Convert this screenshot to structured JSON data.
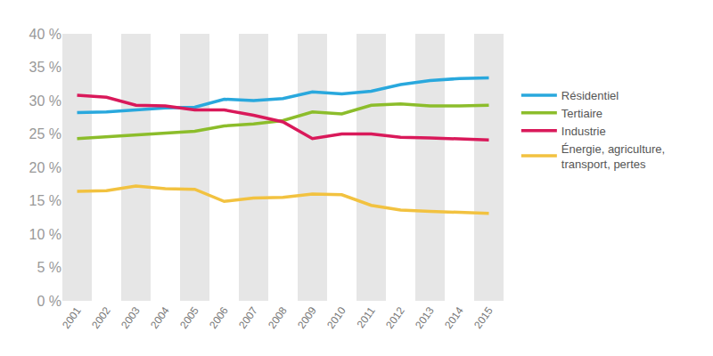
{
  "chart_data": {
    "type": "line",
    "categories": [
      "2001",
      "2002",
      "2003",
      "2004",
      "2005",
      "2006",
      "2007",
      "2008",
      "2009",
      "2010",
      "2011",
      "2012",
      "2013",
      "2014",
      "2015"
    ],
    "series": [
      {
        "name": "Résidentiel",
        "color": "#29a8dd",
        "values": [
          28.2,
          28.3,
          28.6,
          28.9,
          29.0,
          30.2,
          30.0,
          30.3,
          31.3,
          31.0,
          31.4,
          32.4,
          33.0,
          33.3,
          33.4
        ]
      },
      {
        "name": "Tertiaire",
        "color": "#8cbd2b",
        "values": [
          24.3,
          24.6,
          24.8,
          25.1,
          25.4,
          26.2,
          26.5,
          27.0,
          28.3,
          28.0,
          29.3,
          29.5,
          29.2,
          29.2,
          29.3
        ]
      },
      {
        "name": "Industrie",
        "color": "#d9195a",
        "values": [
          30.8,
          30.5,
          29.3,
          29.2,
          28.6,
          28.6,
          27.8,
          26.8,
          24.3,
          25.0,
          25.0,
          24.5,
          24.4,
          24.3,
          24.1
        ]
      },
      {
        "name": "Énergie, agriculture, transport, pertes",
        "color": "#f2c240",
        "values": [
          16.4,
          16.5,
          17.2,
          16.8,
          16.7,
          14.9,
          15.4,
          15.5,
          16.0,
          15.9,
          14.3,
          13.6,
          13.4,
          13.2,
          13.1
        ]
      }
    ],
    "ylim": [
      0,
      40
    ],
    "yticks": [
      {
        "value": 0,
        "label": "0 %"
      },
      {
        "value": 5,
        "label": "5 %"
      },
      {
        "value": 10,
        "label": "10 %"
      },
      {
        "value": 15,
        "label": "15 %"
      },
      {
        "value": 20,
        "label": "20 %"
      },
      {
        "value": 25,
        "label": "25 %"
      },
      {
        "value": 30,
        "label": "30 %"
      },
      {
        "value": 35,
        "label": "35 %"
      },
      {
        "value": 40,
        "label": "40 %"
      }
    ],
    "grid": false,
    "legend": "right"
  }
}
